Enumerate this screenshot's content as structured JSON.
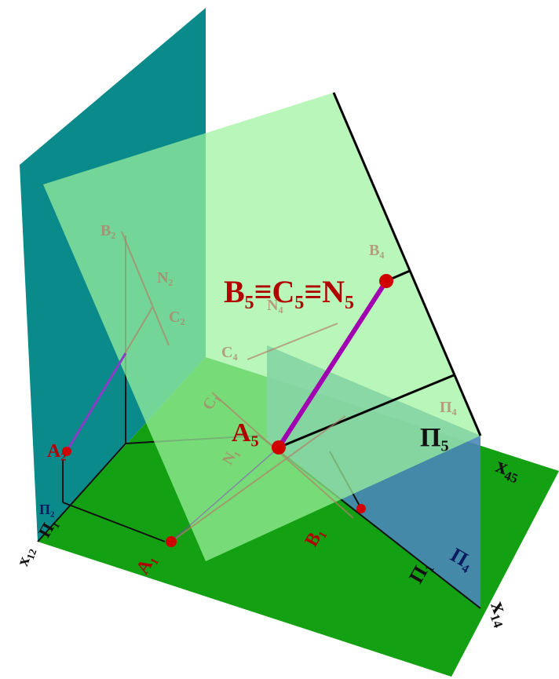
{
  "labels": {
    "b5c5n5": "B₅≡C₅≡N₅",
    "a5": "A₅",
    "pi5": "Π₅",
    "x45": "x₄₅",
    "x14": "x₁₄",
    "pi4": "Π₄",
    "pi1_right": "Π₁",
    "x12": "x₁₂",
    "pi1_left": "Π₁",
    "pi2": "Π₂",
    "a1": "A₁",
    "b1": "B₁",
    "a2": "A₂",
    "b2": "B₂",
    "n2": "N₂",
    "c2": "C₂",
    "c4": "C₄",
    "n4": "N₄",
    "b4": "B₄",
    "pi4_faded": "Π₄",
    "c1": "C₁",
    "n1": "N₁"
  }
}
